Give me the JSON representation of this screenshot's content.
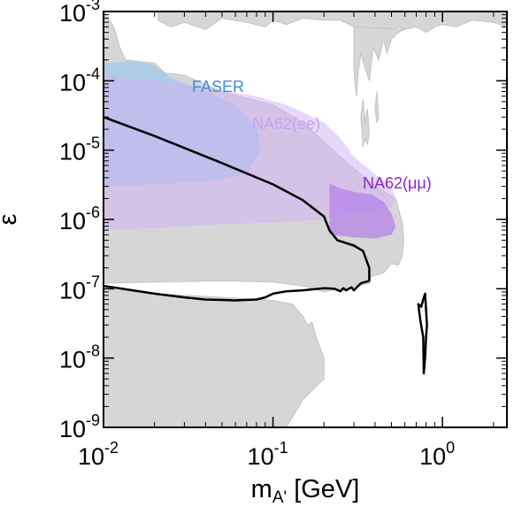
{
  "chart_data": {
    "type": "area",
    "title": "",
    "xlabel": "m",
    "xlabel_sub": "A'",
    "xlabel_unit": " [GeV]",
    "ylabel": "ε",
    "xscale": "log",
    "yscale": "log",
    "xlim": [
      0.01,
      2.4
    ],
    "ylim": [
      1e-09,
      0.001
    ],
    "x_ticks": [
      {
        "value": 0.01,
        "base": "10",
        "exp": "-2"
      },
      {
        "value": 0.1,
        "base": "10",
        "exp": "-1"
      },
      {
        "value": 1,
        "base": "10",
        "exp": "0"
      }
    ],
    "y_ticks": [
      {
        "value": 1e-09,
        "base": "10",
        "exp": "-9"
      },
      {
        "value": 1e-08,
        "base": "10",
        "exp": "-8"
      },
      {
        "value": 1e-07,
        "base": "10",
        "exp": "-7"
      },
      {
        "value": 1e-06,
        "base": "10",
        "exp": "-6"
      },
      {
        "value": 1e-05,
        "base": "10",
        "exp": "-5"
      },
      {
        "value": 0.0001,
        "base": "10",
        "exp": "-4"
      },
      {
        "value": 0.001,
        "base": "10",
        "exp": "-3"
      }
    ],
    "grid": false,
    "colors": {
      "excluded": "#d6d6d6",
      "faser": "#8ec6f2",
      "na62_ee": "#d2b0f5",
      "na62_mumu": "#b37ee8",
      "contour": "#000000",
      "faser_text": "#3b8ee0",
      "na62_ee_text": "#c9a2ef",
      "na62_mumu_text": "#8a28c9"
    },
    "series": [
      {
        "key": "excluded_lower",
        "kind": "area",
        "points": [
          [
            0.01,
            1e-07
          ],
          [
            0.02,
            8.5e-08
          ],
          [
            0.05,
            7.5e-08
          ],
          [
            0.08,
            7e-08
          ],
          [
            0.1,
            6.8e-08
          ],
          [
            0.13,
            6e-08
          ],
          [
            0.15,
            4e-08
          ],
          [
            0.16,
            3e-08
          ],
          [
            0.17,
            3.3e-08
          ],
          [
            0.18,
            2e-08
          ],
          [
            0.2,
            1e-08
          ],
          [
            0.2,
            5e-09
          ],
          [
            0.15,
            2.5e-09
          ],
          [
            0.12,
            1e-09
          ],
          [
            0.01,
            1e-09
          ]
        ]
      },
      {
        "key": "excluded_upper",
        "kind": "area",
        "points": [
          [
            0.01,
            0.001
          ],
          [
            0.0115,
            0.0006
          ],
          [
            0.0125,
            0.0003
          ],
          [
            0.0135,
            0.0002
          ],
          [
            0.02,
            0.00018
          ],
          [
            0.023,
            0.00013
          ],
          [
            0.03,
            0.00012
          ],
          [
            0.05,
            7e-05
          ],
          [
            0.1,
            4.5e-05
          ],
          [
            0.15,
            2.5e-05
          ],
          [
            0.25,
            8e-06
          ],
          [
            0.4,
            3e-06
          ],
          [
            0.53,
            2e-06
          ],
          [
            0.58,
            9e-07
          ],
          [
            0.59,
            5e-07
          ],
          [
            0.58,
            3e-07
          ],
          [
            0.55,
            2.2e-07
          ],
          [
            0.5,
            2.3e-07
          ],
          [
            0.45,
            1.7e-07
          ],
          [
            0.38,
            1.5e-07
          ],
          [
            0.37,
            1.2e-07
          ],
          [
            0.3,
            1.05e-07
          ],
          [
            0.25,
            1e-07
          ],
          [
            0.2,
            9e-08
          ],
          [
            0.15,
            1.1e-07
          ],
          [
            0.1,
            1.25e-07
          ],
          [
            0.05,
            1.3e-07
          ],
          [
            0.02,
            1.25e-07
          ],
          [
            0.01,
            1.2e-07
          ]
        ]
      },
      {
        "key": "excluded_top_band",
        "kind": "area",
        "points": [
          [
            0.021,
            0.001
          ],
          [
            0.021,
            0.00075
          ],
          [
            0.025,
            0.0006
          ],
          [
            0.03,
            0.0007
          ],
          [
            0.04,
            0.00055
          ],
          [
            0.05,
            0.0008
          ],
          [
            0.07,
            0.0007
          ],
          [
            0.09,
            0.0006
          ],
          [
            0.1,
            0.00075
          ],
          [
            0.12,
            0.00065
          ],
          [
            0.15,
            0.0008
          ],
          [
            0.2,
            0.00075
          ],
          [
            0.25,
            0.00075
          ],
          [
            0.3,
            0.0006
          ],
          [
            0.38,
            0.0005
          ],
          [
            0.45,
            0.0006
          ],
          [
            0.5,
            0.0005
          ],
          [
            0.55,
            0.0006
          ],
          [
            0.6,
            0.00055
          ],
          [
            0.7,
            0.0006
          ],
          [
            0.8,
            0.0005
          ],
          [
            0.9,
            0.0006
          ],
          [
            1.0,
            0.00065
          ],
          [
            1.2,
            0.0006
          ],
          [
            1.5,
            0.00075
          ],
          [
            2.0,
            0.0007
          ],
          [
            2.4,
            0.0006
          ],
          [
            2.4,
            0.001
          ]
        ]
      },
      {
        "key": "excluded_drips",
        "kind": "area",
        "points": [
          [
            0.3,
            0.0006
          ],
          [
            0.3,
            0.00015
          ],
          [
            0.31,
            6e-05
          ],
          [
            0.32,
            0.00015
          ],
          [
            0.33,
            0.00025
          ],
          [
            0.35,
            0.00015
          ],
          [
            0.37,
            0.0001
          ],
          [
            0.39,
            0.0003
          ],
          [
            0.42,
            0.0002
          ],
          [
            0.45,
            0.0004
          ],
          [
            0.47,
            0.00025
          ],
          [
            0.5,
            0.0004
          ],
          [
            0.55,
            0.0005
          ],
          [
            0.6,
            0.00055
          ]
        ]
      },
      {
        "key": "excluded_small",
        "kind": "area",
        "points": [
          [
            0.33,
            3e-05
          ],
          [
            0.34,
            5.5e-05
          ],
          [
            0.35,
            2.5e-05
          ],
          [
            0.36,
            4e-05
          ],
          [
            0.37,
            1.7e-05
          ],
          [
            0.36,
            1.2e-05
          ],
          [
            0.35,
            1.5e-05
          ],
          [
            0.34,
            1.1e-05
          ]
        ]
      },
      {
        "key": "excluded_small_2",
        "kind": "area",
        "points": [
          [
            0.4,
            4e-05
          ],
          [
            0.41,
            7e-05
          ],
          [
            0.42,
            3e-05
          ],
          [
            0.41,
            2.5e-05
          ]
        ]
      },
      {
        "key": "faser",
        "kind": "area",
        "points": [
          [
            0.01,
            0.00018
          ],
          [
            0.015,
            0.00019
          ],
          [
            0.02,
            0.00017
          ],
          [
            0.025,
            0.00011
          ],
          [
            0.04,
            7e-05
          ],
          [
            0.06,
            4.5e-05
          ],
          [
            0.08,
            2.2e-05
          ],
          [
            0.085,
            1e-05
          ],
          [
            0.07,
            4.5e-06
          ],
          [
            0.04,
            3.5e-06
          ],
          [
            0.02,
            3.2e-06
          ],
          [
            0.01,
            3e-06
          ]
        ]
      },
      {
        "key": "na62_ee",
        "kind": "area",
        "points": [
          [
            0.01,
            0.00012
          ],
          [
            0.02,
            0.0001
          ],
          [
            0.04,
            8e-05
          ],
          [
            0.08,
            6e-05
          ],
          [
            0.12,
            4.5e-05
          ],
          [
            0.15,
            3.5e-05
          ],
          [
            0.2,
            2.5e-05
          ],
          [
            0.25,
            1.5e-05
          ],
          [
            0.3,
            8e-06
          ],
          [
            0.4,
            4.5e-06
          ],
          [
            0.5,
            3e-06
          ],
          [
            0.53,
            2e-06
          ],
          [
            0.5,
            1.5e-06
          ],
          [
            0.35,
            1.3e-06
          ],
          [
            0.25,
            1.2e-06
          ],
          [
            0.2,
            1e-06
          ],
          [
            0.1,
            9e-07
          ],
          [
            0.05,
            8.5e-07
          ],
          [
            0.02,
            7.5e-07
          ],
          [
            0.01,
            7e-07
          ]
        ]
      },
      {
        "key": "na62_mumu",
        "kind": "area",
        "points": [
          [
            0.215,
            3.3e-06
          ],
          [
            0.25,
            2.8e-06
          ],
          [
            0.3,
            2.5e-06
          ],
          [
            0.38,
            2.3e-06
          ],
          [
            0.45,
            1.8e-06
          ],
          [
            0.5,
            1.2e-06
          ],
          [
            0.53,
            8e-07
          ],
          [
            0.5,
            6e-07
          ],
          [
            0.4,
            5.3e-07
          ],
          [
            0.3,
            5.5e-07
          ],
          [
            0.25,
            5.8e-07
          ],
          [
            0.215,
            6e-07
          ]
        ]
      },
      {
        "key": "contour_main",
        "kind": "line",
        "points": [
          [
            0.01,
            3e-05
          ],
          [
            0.02,
            1.6e-05
          ],
          [
            0.05,
            6.5e-06
          ],
          [
            0.1,
            3.2e-06
          ],
          [
            0.15,
            1.9e-06
          ],
          [
            0.2,
            1.1e-06
          ],
          [
            0.215,
            7e-07
          ],
          [
            0.24,
            5e-07
          ],
          [
            0.3,
            4.2e-07
          ],
          [
            0.34,
            3.5e-07
          ],
          [
            0.37,
            2e-07
          ],
          [
            0.37,
            1.3e-07
          ],
          [
            0.33,
            1.2e-07
          ],
          [
            0.3,
            9.5e-08
          ],
          [
            0.29,
            1.05e-07
          ],
          [
            0.27,
            9.5e-08
          ],
          [
            0.26,
            1.02e-07
          ],
          [
            0.25,
            9.2e-08
          ],
          [
            0.23,
            1e-07
          ],
          [
            0.2,
            1.02e-07
          ],
          [
            0.15,
            9.5e-08
          ],
          [
            0.12,
            9.2e-08
          ],
          [
            0.1,
            8.5e-08
          ],
          [
            0.09,
            7.5e-08
          ],
          [
            0.08,
            7e-08
          ],
          [
            0.06,
            6.8e-08
          ],
          [
            0.04,
            7e-08
          ],
          [
            0.03,
            7.5e-08
          ],
          [
            0.02,
            8.5e-08
          ],
          [
            0.01,
            1.1e-07
          ]
        ]
      },
      {
        "key": "contour_loop",
        "kind": "line",
        "closed": true,
        "points": [
          [
            0.79,
            8.5e-08
          ],
          [
            0.8,
            5e-08
          ],
          [
            0.81,
            3e-08
          ],
          [
            0.8,
            2e-08
          ],
          [
            0.79,
            1e-08
          ],
          [
            0.775,
            6e-09
          ],
          [
            0.77,
            2e-08
          ],
          [
            0.74,
            3.5e-08
          ],
          [
            0.72,
            6e-08
          ],
          [
            0.75,
            5.5e-08
          ],
          [
            0.77,
            7e-08
          ]
        ]
      }
    ],
    "labels": [
      {
        "key": "faser",
        "text": "FASER"
      },
      {
        "key": "na62_ee",
        "text": "NA62(ee)"
      },
      {
        "key": "na62_mumu",
        "text": "NA62(μμ)"
      }
    ]
  }
}
